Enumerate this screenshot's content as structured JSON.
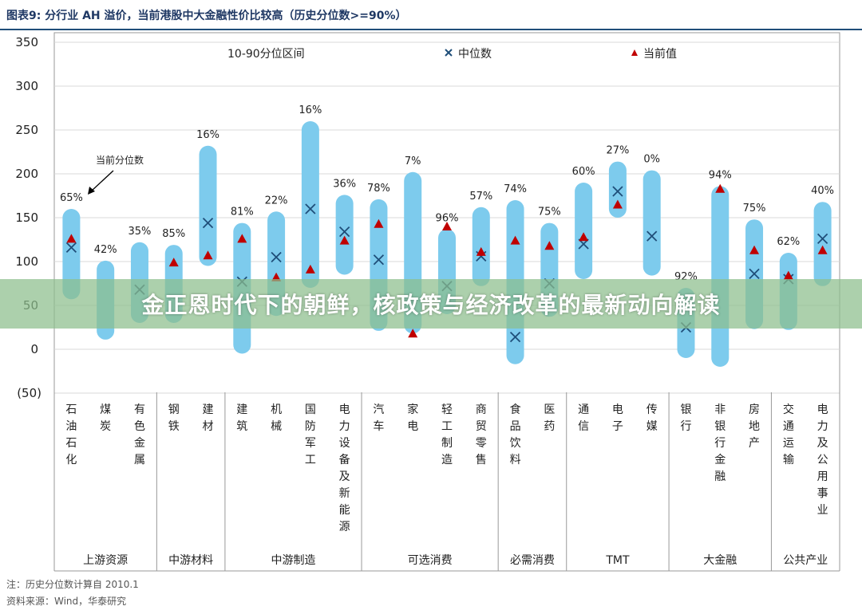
{
  "figure": {
    "title": "图表9:  分行业 AH 溢价，当前港股中大金融性价比较高（历史分位数>=90%）",
    "note": "注：历史分位数计算自 2010.1",
    "source": "资料来源：Wind，华泰研究"
  },
  "overlay": {
    "headline": "金正恩时代下的朝鲜，核政策与经济改革的最新动向解读"
  },
  "colors": {
    "range_bar": "#7dcbed",
    "median_marker": "#1f4e79",
    "current_marker": "#c00000",
    "axis": "#999999"
  },
  "chart_data": {
    "type": "range",
    "ylim": [
      -50,
      350
    ],
    "yticks": [
      350,
      300,
      250,
      200,
      150,
      100,
      50,
      0
    ],
    "ytick_neg_label": "(50)",
    "legend": {
      "range": "10-90分位区间",
      "median": "中位数",
      "current": "当前值"
    },
    "annotation": "当前分位数",
    "categories": [
      {
        "name": "石油石化",
        "low": 57,
        "high": 160,
        "median": 116,
        "current": 126,
        "pct": "65%"
      },
      {
        "name": "煤炭",
        "low": 11,
        "high": 101,
        "median": null,
        "current": null,
        "pct": "42%"
      },
      {
        "name": "有色金属",
        "low": 30,
        "high": 122,
        "median": 68,
        "current": null,
        "pct": "35%"
      },
      {
        "name": "钢铁",
        "low": 30,
        "high": 119,
        "median": null,
        "current": 99,
        "pct": "85%"
      },
      {
        "name": "建材",
        "low": 95,
        "high": 232,
        "median": 144,
        "current": 107,
        "pct": "16%"
      },
      {
        "name": "建筑",
        "low": -5,
        "high": 144,
        "median": 77,
        "current": 126,
        "pct": "81%"
      },
      {
        "name": "机械",
        "low": 38,
        "high": 157,
        "median": 105,
        "current": 82,
        "pct": "22%"
      },
      {
        "name": "国防军工",
        "low": 70,
        "high": 260,
        "median": 160,
        "current": 91,
        "pct": "16%"
      },
      {
        "name": "电力设备及新能源",
        "low": 85,
        "high": 176,
        "median": 134,
        "current": 124,
        "pct": "36%"
      },
      {
        "name": "汽车",
        "low": 21,
        "high": 171,
        "median": 102,
        "current": 143,
        "pct": "78%"
      },
      {
        "name": "家电",
        "low": 18,
        "high": 202,
        "median": null,
        "current": 18,
        "pct": "7%"
      },
      {
        "name": "轻工制造",
        "low": 40,
        "high": 137,
        "median": 72,
        "current": 140,
        "pct": "96%"
      },
      {
        "name": "商贸零售",
        "low": 72,
        "high": 162,
        "median": 106,
        "current": 111,
        "pct": "57%"
      },
      {
        "name": "食品饮料",
        "low": -17,
        "high": 170,
        "median": 14,
        "current": 124,
        "pct": "74%"
      },
      {
        "name": "医药",
        "low": 37,
        "high": 144,
        "median": 75,
        "current": 118,
        "pct": "75%"
      },
      {
        "name": "通信",
        "low": 80,
        "high": 190,
        "median": 120,
        "current": 128,
        "pct": "60%"
      },
      {
        "name": "电子",
        "low": 150,
        "high": 214,
        "median": 180,
        "current": 165,
        "pct": "27%"
      },
      {
        "name": "传媒",
        "low": 84,
        "high": 204,
        "median": 129,
        "current": null,
        "pct": "0%"
      },
      {
        "name": "银行",
        "low": -10,
        "high": 70,
        "median": 25,
        "current": null,
        "pct": "92%"
      },
      {
        "name": "非银行金融",
        "low": -20,
        "high": 186,
        "median": null,
        "current": 183,
        "pct": "94%"
      },
      {
        "name": "房地产",
        "low": 23,
        "high": 148,
        "median": 86,
        "current": 113,
        "pct": "75%"
      },
      {
        "name": "交通运输",
        "low": 22,
        "high": 110,
        "median": 80,
        "current": 84,
        "pct": "62%"
      },
      {
        "name": "电力及公用事业",
        "low": 72,
        "high": 168,
        "median": 126,
        "current": 113,
        "pct": "40%"
      }
    ],
    "groups": [
      {
        "name": "上游资源",
        "start": 0,
        "count": 3
      },
      {
        "name": "中游材料",
        "start": 3,
        "count": 2
      },
      {
        "name": "中游制造",
        "start": 5,
        "count": 4
      },
      {
        "name": "可选消费",
        "start": 9,
        "count": 4
      },
      {
        "name": "必需消费",
        "start": 13,
        "count": 2
      },
      {
        "name": "TMT",
        "start": 15,
        "count": 3
      },
      {
        "name": "大金融",
        "start": 18,
        "count": 3
      },
      {
        "name": "公共产业",
        "start": 21,
        "count": 2
      }
    ]
  }
}
